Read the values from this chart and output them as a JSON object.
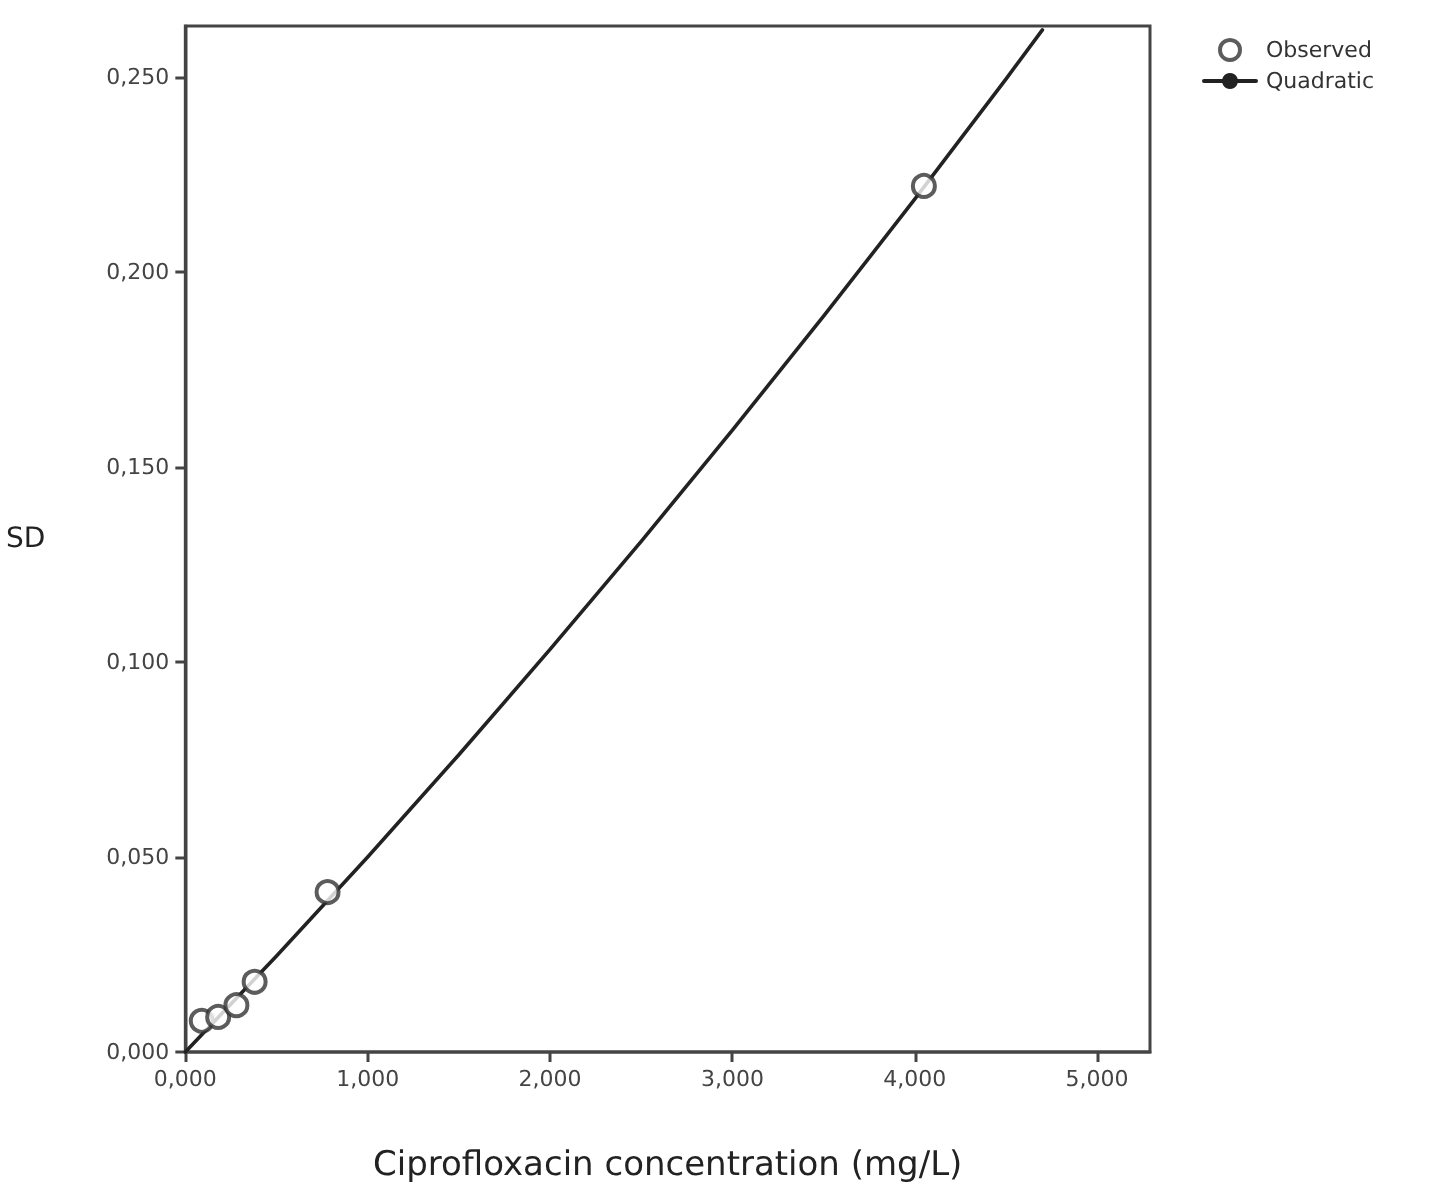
{
  "chart_data": {
    "type": "scatter",
    "xlabel": "Ciprofloxacin concentration (mg/L)",
    "ylabel": "SD",
    "xlim": [
      0,
      5.29
    ],
    "ylim": [
      0,
      0.263
    ],
    "xticks": [
      {
        "value": 0,
        "label": "0,000"
      },
      {
        "value": 1,
        "label": "1,000"
      },
      {
        "value": 2,
        "label": "2,000"
      },
      {
        "value": 3,
        "label": "3,000"
      },
      {
        "value": 4,
        "label": "4,000"
      },
      {
        "value": 5,
        "label": "5,000"
      }
    ],
    "yticks": [
      {
        "value": 0,
        "label": "0,000"
      },
      {
        "value": 0.05,
        "label": "0,050"
      },
      {
        "value": 0.1,
        "label": "0,100"
      },
      {
        "value": 0.15,
        "label": "0,150"
      },
      {
        "value": 0.2,
        "label": "0,200"
      },
      {
        "value": 0.25,
        "label": "0,250"
      }
    ],
    "grid": false,
    "legend": "top right",
    "series": [
      {
        "name": "Observed",
        "marker": "circle",
        "color": "#333333",
        "x": [
          0.09,
          0.18,
          0.28,
          0.38,
          0.78,
          4.05
        ],
        "values": [
          0.008,
          0.009,
          0.012,
          0.018,
          0.041,
          0.222
        ]
      },
      {
        "name": "Quadratic",
        "type": "line",
        "marker": "none",
        "line_style": "solid",
        "color": "#222222",
        "x": [
          0,
          0.5,
          1,
          1.5,
          2,
          2.5,
          3,
          3.5,
          4,
          4.5,
          4.7
        ],
        "values": [
          0,
          0.0246,
          0.05,
          0.0762,
          0.1032,
          0.1309,
          0.1594,
          0.1886,
          0.2186,
          0.2494,
          0.262
        ]
      }
    ]
  }
}
